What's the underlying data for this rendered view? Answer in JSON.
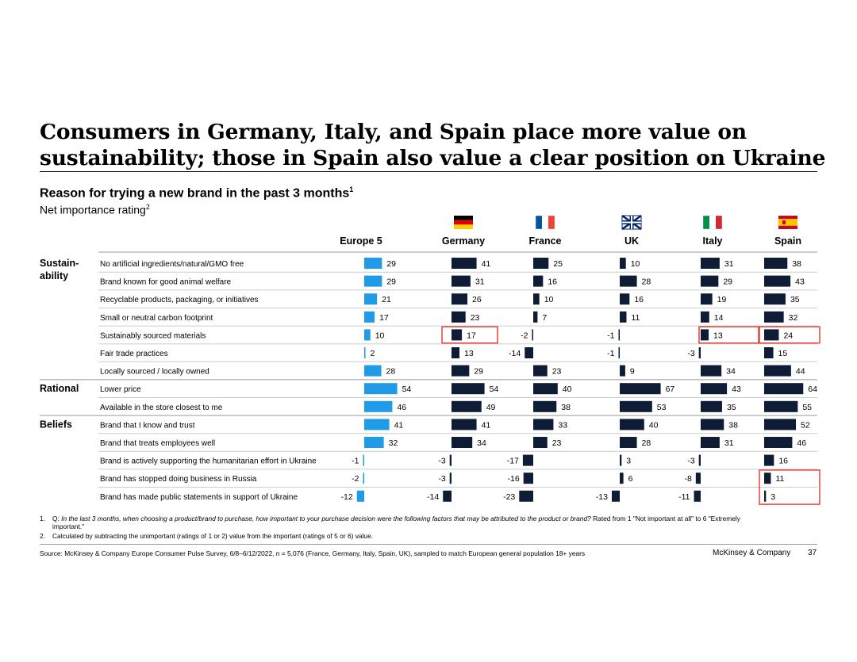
{
  "title_line1": "Consumers in Germany, Italy, and Spain place more value on",
  "title_line2": "sustainability; those in Spain also value a clear position on Ukraine",
  "subtitle": "Reason for trying a new brand in the past 3 months",
  "subtitle_sup": "1",
  "subtitle2": "Net importance rating",
  "subtitle2_sup": "2",
  "colors": {
    "europe": "#1f9be8",
    "country": "#0e1c36",
    "highlight": "#e8413c",
    "rule": "#cccccc"
  },
  "chart_data": {
    "type": "bar",
    "orientation": "horizontal",
    "title": "Reason for trying a new brand in the past 3 months",
    "categories": [
      "No artificial ingredients/natural/GMO free",
      "Brand known for good animal welfare",
      "Recyclable products, packaging, or initiatives",
      "Small or neutral carbon footprint",
      "Sustainably sourced materials",
      "Fair trade practices",
      "Locally sourced / locally owned",
      "Lower price",
      "Available in the store closest to me",
      "Brand that I know and trust",
      "Brand that treats employees well",
      "Brand is actively supporting the humanitarian effort in Ukraine",
      "Brand has stopped doing business in Russia",
      "Brand has made public statements in support of Ukraine"
    ],
    "groups": [
      {
        "name": "Sustain-",
        "name2": "ability",
        "start": 0
      },
      {
        "name": "Rational",
        "name2": "",
        "start": 7
      },
      {
        "name": "Beliefs",
        "name2": "",
        "start": 9
      }
    ],
    "series": [
      {
        "name": "Europe 5",
        "flag": "",
        "values": [
          29,
          29,
          21,
          17,
          10,
          2,
          28,
          54,
          46,
          41,
          32,
          -1,
          -2,
          -12
        ]
      },
      {
        "name": "Germany",
        "flag": "de",
        "values": [
          41,
          31,
          26,
          23,
          17,
          13,
          29,
          54,
          49,
          41,
          34,
          -3,
          -3,
          -14
        ]
      },
      {
        "name": "France",
        "flag": "fr",
        "values": [
          25,
          16,
          10,
          7,
          -2,
          -14,
          23,
          40,
          38,
          33,
          23,
          -17,
          -16,
          -23
        ]
      },
      {
        "name": "UK",
        "flag": "uk",
        "values": [
          10,
          28,
          16,
          11,
          -1,
          -1,
          9,
          67,
          53,
          40,
          28,
          3,
          6,
          -13
        ]
      },
      {
        "name": "Italy",
        "flag": "it",
        "values": [
          31,
          29,
          19,
          14,
          13,
          -3,
          34,
          43,
          35,
          38,
          31,
          -3,
          -8,
          -11
        ]
      },
      {
        "name": "Spain",
        "flag": "es",
        "values": [
          38,
          43,
          35,
          32,
          24,
          15,
          44,
          64,
          55,
          52,
          46,
          16,
          11,
          3
        ]
      }
    ],
    "highlights": [
      {
        "series": 1,
        "from": 4,
        "to": 4
      },
      {
        "series": 4,
        "from": 4,
        "to": 4
      },
      {
        "series": 5,
        "from": 4,
        "to": 4
      },
      {
        "series": 5,
        "from": 12,
        "to": 13
      }
    ]
  },
  "footnote1_num": "1.",
  "footnote1_q": "Q:",
  "footnote1_italic": "In the last 3 months, when choosing a product/brand to purchase, how important to your purchase decision were the following factors that may be attributed to the product or brand?",
  "footnote1_rest": "Rated from 1 \"Not important at all\" to 6 \"Extremely important.\"",
  "footnote2_num": "2.",
  "footnote2": "Calculated by subtracting the unimportant (ratings of 1 or 2) value from the important (ratings of 5 or 6) value.",
  "source": "Source: McKinsey & Company Europe Consumer Pulse Survey, 6/8–6/12/2022, n = 5,076 (France, Germany, Italy, Spain, UK), sampled to match European general population 18+ years",
  "brand": "McKinsey & Company",
  "page_number": "37"
}
